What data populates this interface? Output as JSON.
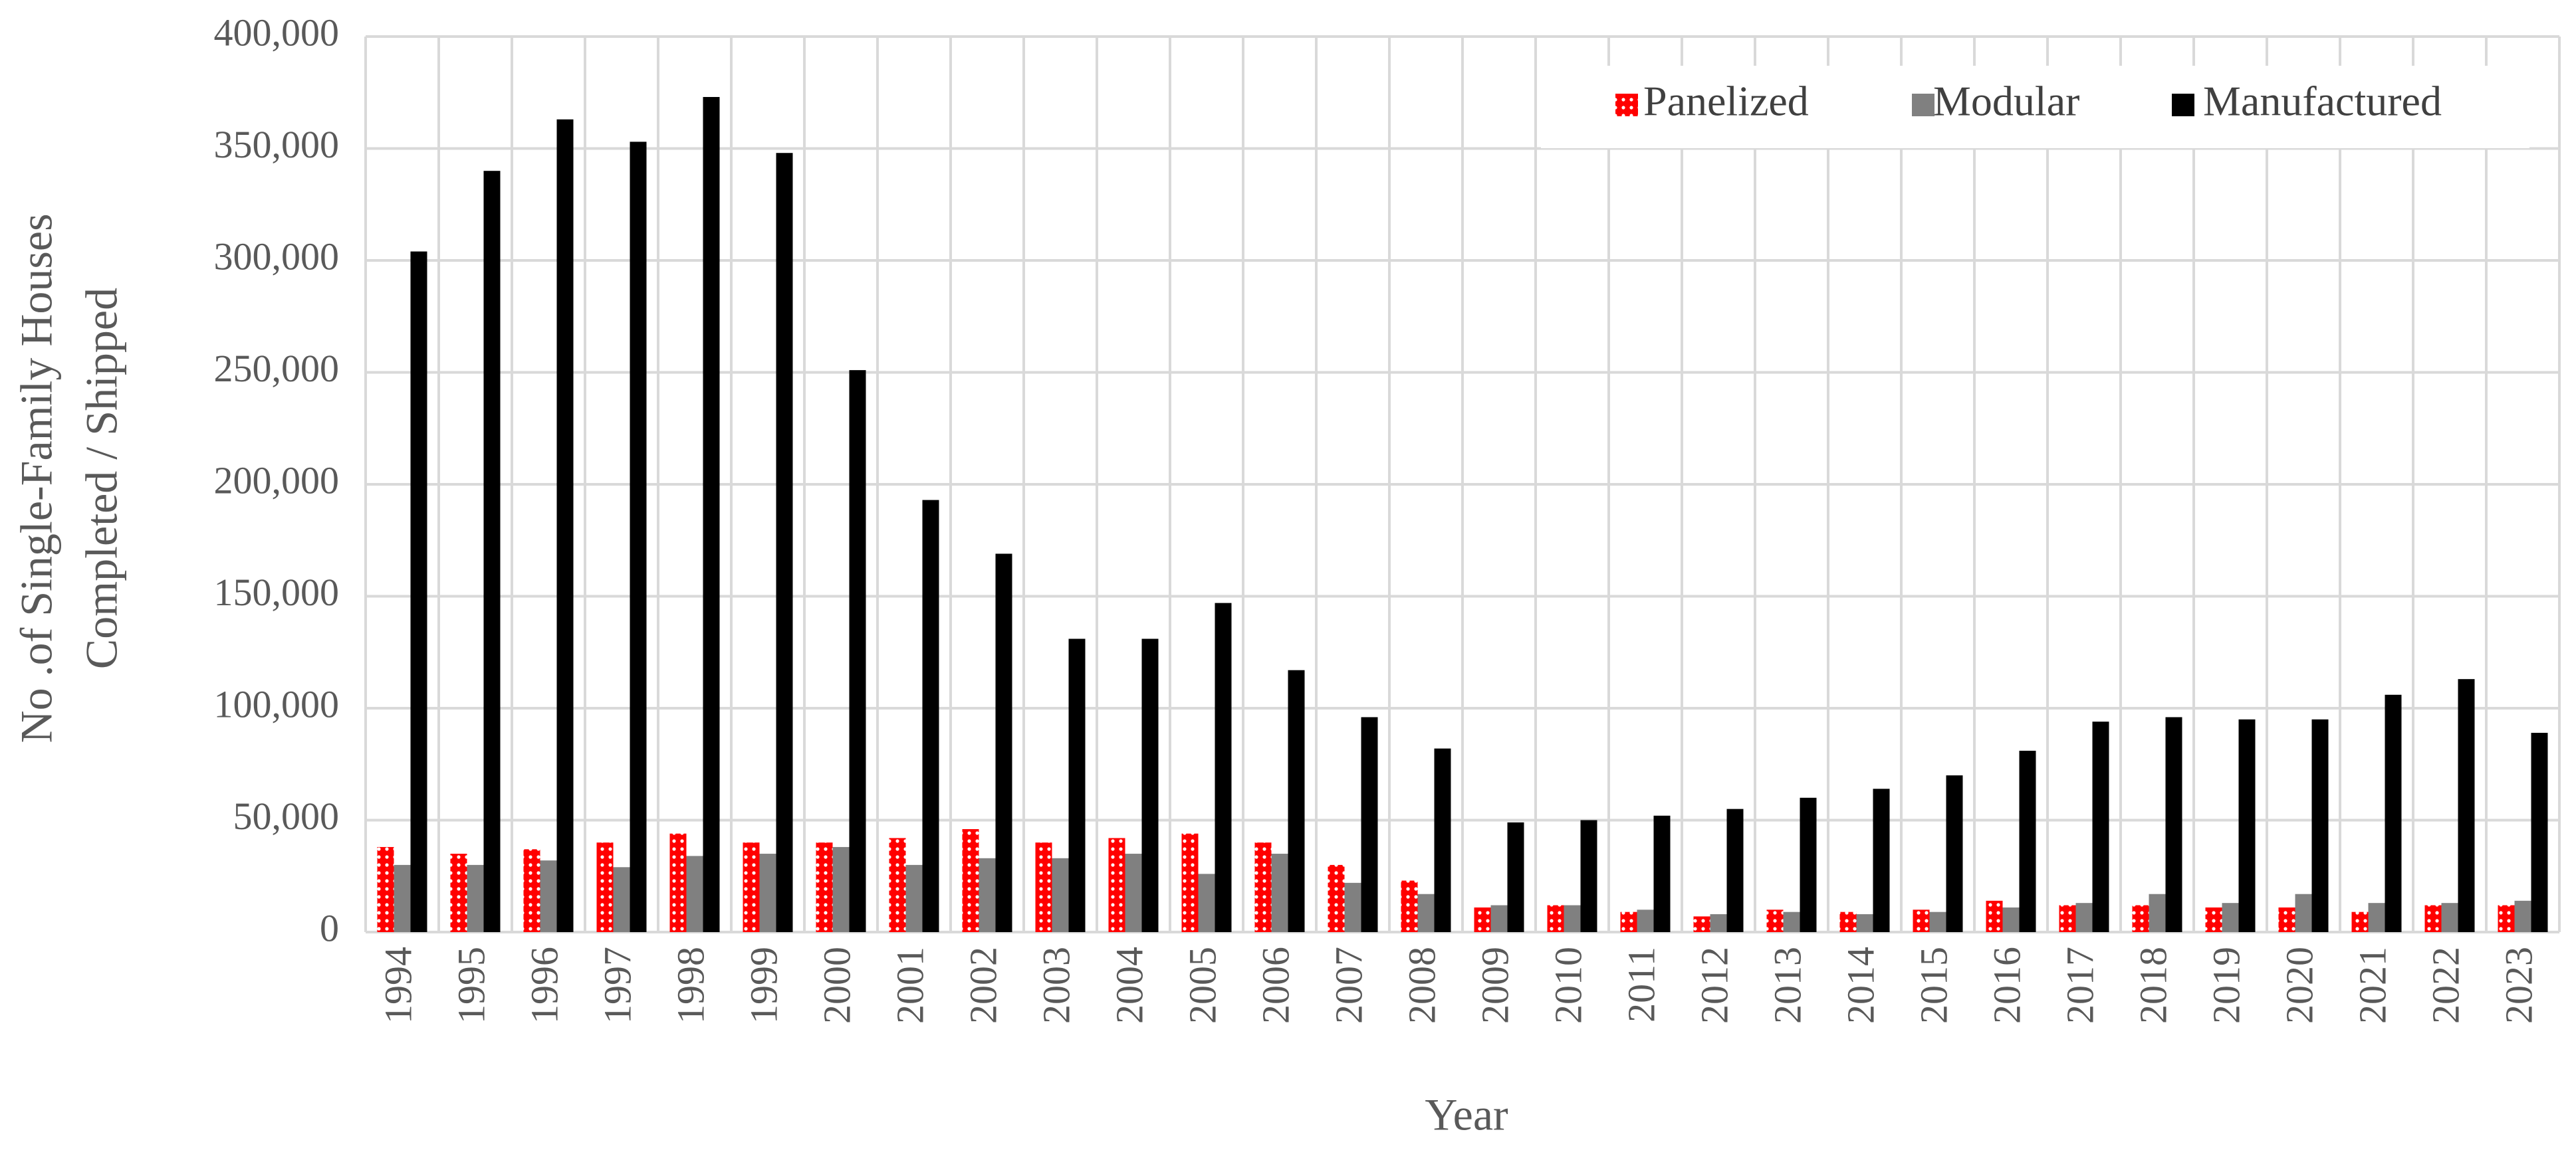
{
  "chart_data": {
    "type": "bar",
    "xlabel": "Year",
    "ylabel": [
      "No .of Single-Family Houses",
      "Completed / Shipped"
    ],
    "categories": [
      "1994",
      "1995",
      "1996",
      "1997",
      "1998",
      "1999",
      "2000",
      "2001",
      "2002",
      "2003",
      "2004",
      "2005",
      "2006",
      "2007",
      "2008",
      "2009",
      "2010",
      "2011",
      "2012",
      "2013",
      "2014",
      "2015",
      "2016",
      "2017",
      "2018",
      "2019",
      "2020",
      "2021",
      "2022",
      "2023"
    ],
    "series": [
      {
        "name": "Panelized",
        "color": "#ff0000",
        "pattern": "dotted",
        "values": [
          38000,
          35000,
          37000,
          40000,
          44000,
          40000,
          40000,
          42000,
          46000,
          40000,
          42000,
          44000,
          40000,
          30000,
          23000,
          11000,
          12000,
          9000,
          7000,
          10000,
          9000,
          10000,
          14000,
          12000,
          12000,
          11000,
          11000,
          9000,
          12000,
          12000
        ]
      },
      {
        "name": "Modular",
        "color": "#808080",
        "values": [
          30000,
          30000,
          32000,
          29000,
          34000,
          35000,
          38000,
          30000,
          33000,
          33000,
          35000,
          26000,
          35000,
          22000,
          17000,
          12000,
          12000,
          10000,
          8000,
          9000,
          8000,
          9000,
          11000,
          13000,
          17000,
          13000,
          17000,
          13000,
          13000,
          14000
        ]
      },
      {
        "name": "Manufactured",
        "color": "#000000",
        "values": [
          304000,
          340000,
          363000,
          353000,
          373000,
          348000,
          251000,
          193000,
          169000,
          131000,
          131000,
          147000,
          117000,
          96000,
          82000,
          49000,
          50000,
          52000,
          55000,
          60000,
          64000,
          70000,
          81000,
          94000,
          96000,
          95000,
          95000,
          106000,
          113000,
          89000
        ]
      }
    ],
    "ylim": [
      0,
      400000
    ],
    "yticks": [
      0,
      {
        "value": 50000,
        "label": "50,000"
      },
      {
        "value": 100000,
        "label": "100,000"
      },
      {
        "value": 150000,
        "label": "150,000"
      },
      {
        "value": 200000,
        "label": "200,000"
      },
      {
        "value": 250000,
        "label": "250,000"
      },
      {
        "value": 300000,
        "label": "300,000"
      },
      {
        "value": 350000,
        "label": "350,000"
      },
      {
        "value": 400000,
        "label": "400,000"
      }
    ],
    "grid": true,
    "legend": "upper right"
  }
}
